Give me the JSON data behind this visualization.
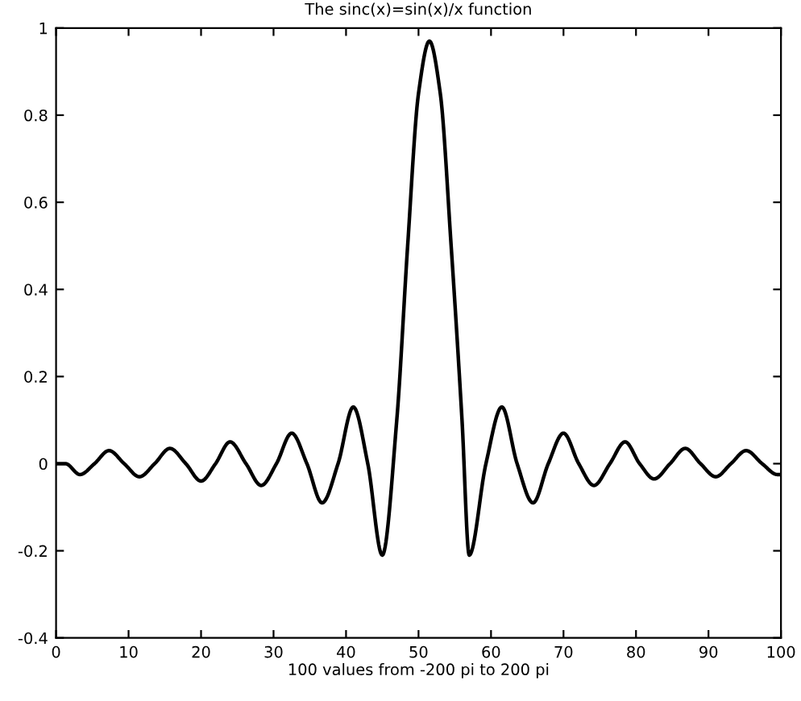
{
  "chart_data": {
    "type": "line",
    "title": "The sinc(x)=sin(x)/x function",
    "xlabel": "100 values from -200 pi to 200 pi",
    "series": [
      {
        "color": "#000000",
        "x": [
          0,
          1.3,
          3.3,
          5.3,
          7.3,
          9.4,
          11.5,
          13.6,
          15.7,
          17.9,
          20,
          22,
          24,
          26.2,
          28.3,
          30.4,
          32.5,
          34.6,
          36.7,
          38.9,
          41,
          43,
          45,
          47,
          48.5,
          50,
          51.5,
          53,
          54.5,
          56,
          57,
          59.3,
          61.5,
          63.6,
          65.8,
          67.9,
          70,
          72.1,
          74.2,
          76.4,
          78.5,
          80.5,
          82.5,
          84.7,
          86.8,
          88.9,
          91,
          93.1,
          95.2,
          97.4,
          99.5,
          100
        ],
        "values": [
          0,
          0,
          -0.025,
          0,
          0.03,
          0,
          -0.03,
          0,
          0.035,
          0,
          -0.04,
          0,
          0.05,
          0,
          -0.05,
          0,
          0.07,
          0,
          -0.09,
          0,
          0.13,
          0,
          -0.21,
          0.1,
          0.5,
          0.85,
          0.97,
          0.85,
          0.5,
          0.1,
          -0.21,
          0,
          0.13,
          0,
          -0.09,
          0,
          0.07,
          0,
          -0.05,
          0,
          0.05,
          0,
          -0.035,
          0,
          0.035,
          0,
          -0.03,
          0,
          0.03,
          0,
          -0.025,
          -0.025
        ]
      }
    ],
    "xlim": [
      0,
      100
    ],
    "xticks": [
      0,
      10,
      20,
      30,
      40,
      50,
      60,
      70,
      80,
      90,
      100
    ],
    "ylim": [
      -0.4,
      1
    ],
    "yticks": [
      -0.4,
      -0.2,
      0,
      0.2,
      0.4,
      0.6,
      0.8,
      1
    ],
    "grid": false,
    "marker": "none",
    "line_style": "solid"
  }
}
